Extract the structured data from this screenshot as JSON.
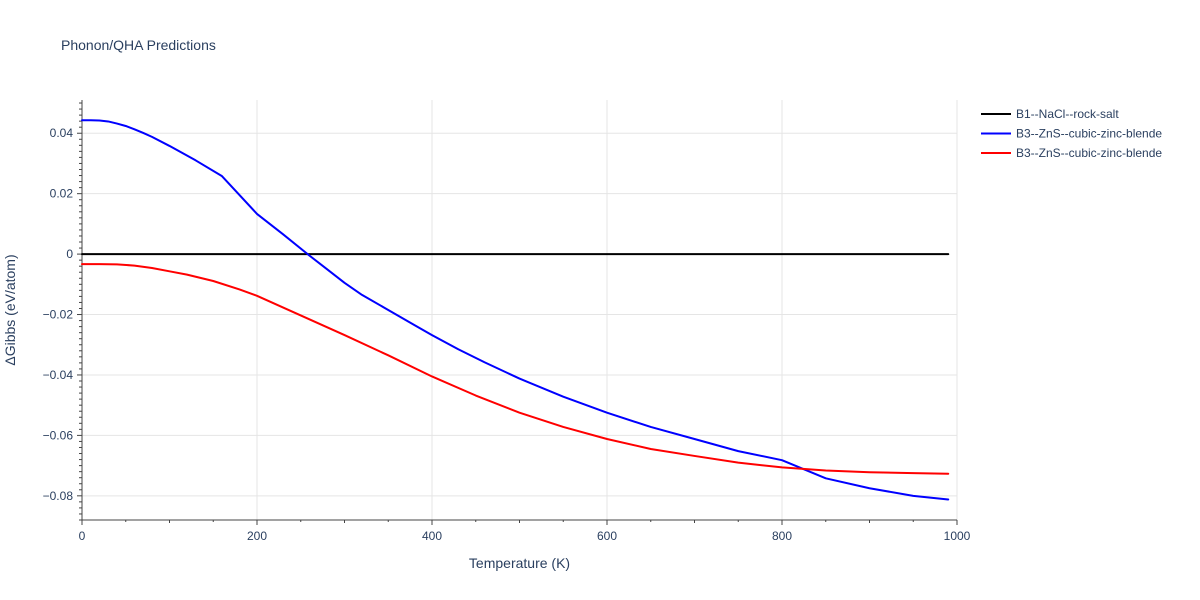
{
  "chart_data": {
    "type": "line",
    "title": "Phonon/QHA Predictions",
    "xlabel": "Temperature (K)",
    "ylabel": "ΔGibbs (eV/atom)",
    "xlim": [
      0,
      1000
    ],
    "ylim": [
      -0.088,
      0.051
    ],
    "x_ticks": [
      0,
      200,
      400,
      600,
      800,
      1000
    ],
    "x_tick_labels": [
      "0",
      "200",
      "400",
      "600",
      "800",
      "1000"
    ],
    "y_ticks": [
      -0.08,
      -0.06,
      -0.04,
      -0.02,
      0,
      0.02,
      0.04
    ],
    "y_tick_labels": [
      "−0.08",
      "−0.06",
      "−0.04",
      "−0.02",
      "0",
      "0.02",
      "0.04"
    ],
    "grid": true,
    "legend_position": "top-right",
    "series": [
      {
        "name": "B1--NaCl--rock-salt",
        "color": "#000000",
        "x": [
          0,
          990
        ],
        "y": [
          0,
          0
        ]
      },
      {
        "name": "B3--ZnS--cubic-zinc-blende",
        "color": "#0000ff",
        "x": [
          0,
          10,
          20,
          30,
          40,
          50,
          60,
          70,
          80,
          100,
          130,
          160,
          200,
          230,
          260,
          280,
          300,
          320,
          350,
          380,
          400,
          430,
          460,
          500,
          550,
          600,
          650,
          700,
          750,
          800,
          850,
          900,
          950,
          990
        ],
        "y": [
          0.0443,
          0.0443,
          0.0442,
          0.0439,
          0.0432,
          0.0424,
          0.0413,
          0.0401,
          0.0388,
          0.0358,
          0.031,
          0.0258,
          0.0133,
          0.0065,
          -0.0005,
          -0.005,
          -0.0095,
          -0.0135,
          -0.0185,
          -0.0235,
          -0.0268,
          -0.0315,
          -0.0358,
          -0.0412,
          -0.0472,
          -0.0525,
          -0.0572,
          -0.0612,
          -0.0652,
          -0.0682,
          -0.0742,
          -0.0775,
          -0.08,
          -0.0812
        ]
      },
      {
        "name": "B3--ZnS--cubic-zinc-blende",
        "color": "#ff0000",
        "x": [
          0,
          20,
          40,
          60,
          80,
          100,
          120,
          150,
          180,
          200,
          250,
          300,
          350,
          400,
          450,
          500,
          550,
          600,
          650,
          700,
          750,
          800,
          850,
          900,
          950,
          990
        ],
        "y": [
          -0.0033,
          -0.0033,
          -0.0034,
          -0.0038,
          -0.0046,
          -0.0057,
          -0.0068,
          -0.0089,
          -0.0117,
          -0.0138,
          -0.0203,
          -0.0268,
          -0.0335,
          -0.0405,
          -0.0468,
          -0.0525,
          -0.0572,
          -0.0612,
          -0.0645,
          -0.0668,
          -0.069,
          -0.0706,
          -0.0716,
          -0.0722,
          -0.0725,
          -0.0727
        ]
      }
    ]
  }
}
